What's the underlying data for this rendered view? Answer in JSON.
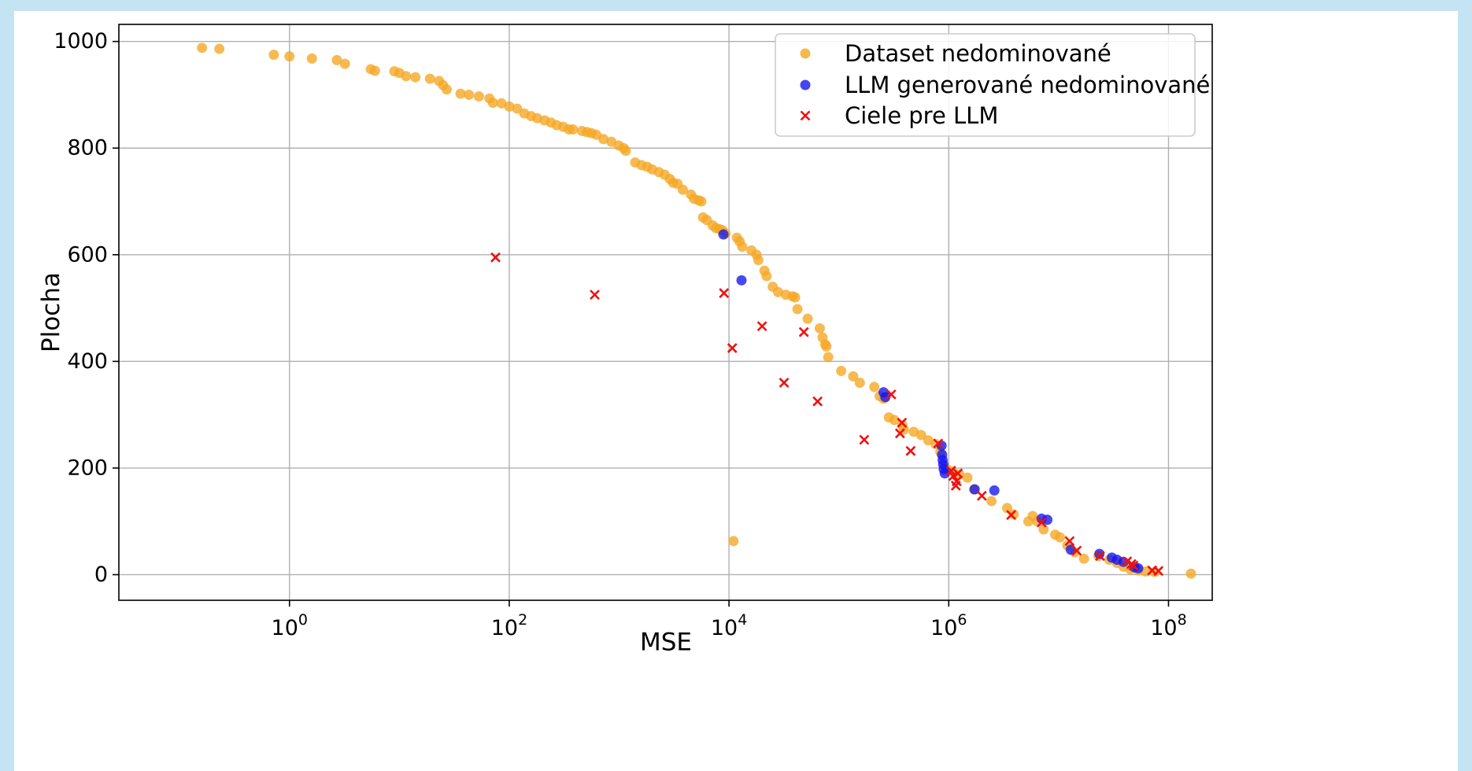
{
  "colors": {
    "dataset": "#f5a623",
    "llm": "#1515f0",
    "target": "#ee1111",
    "grid": "#b0b0b0",
    "page_background": "#c5e4f3"
  },
  "chart_data": {
    "type": "scatter",
    "xlabel": "MSE",
    "ylabel": "Plocha",
    "x_scale": "log",
    "xlim": [
      0.028,
      250000000
    ],
    "ylim": [
      -48,
      1032
    ],
    "x_ticks": [
      {
        "value": 1,
        "base": "10",
        "exp": "0"
      },
      {
        "value": 100,
        "base": "10",
        "exp": "2"
      },
      {
        "value": 10000,
        "base": "10",
        "exp": "4"
      },
      {
        "value": 1000000,
        "base": "10",
        "exp": "6"
      },
      {
        "value": 100000000,
        "base": "10",
        "exp": "8"
      }
    ],
    "y_ticks": [
      0,
      200,
      400,
      600,
      800,
      1000
    ],
    "grid": true,
    "legend_position": "top-right",
    "series": [
      {
        "name": "Dataset nedominované",
        "marker": "circle",
        "points": [
          [
            0.16,
            988
          ],
          [
            0.23,
            986
          ],
          [
            0.72,
            975
          ],
          [
            1.0,
            972
          ],
          [
            1.6,
            968
          ],
          [
            2.7,
            965
          ],
          [
            3.2,
            958
          ],
          [
            5.5,
            948
          ],
          [
            6.0,
            945
          ],
          [
            9.0,
            944
          ],
          [
            10,
            941
          ],
          [
            11.5,
            935
          ],
          [
            14,
            933
          ],
          [
            19,
            930
          ],
          [
            23,
            926
          ],
          [
            25,
            918
          ],
          [
            27,
            910
          ],
          [
            36,
            902
          ],
          [
            43,
            900
          ],
          [
            53,
            897
          ],
          [
            66,
            893
          ],
          [
            71,
            885
          ],
          [
            85,
            884
          ],
          [
            100,
            878
          ],
          [
            118,
            874
          ],
          [
            137,
            865
          ],
          [
            158,
            860
          ],
          [
            180,
            856
          ],
          [
            210,
            852
          ],
          [
            240,
            848
          ],
          [
            270,
            843
          ],
          [
            310,
            840
          ],
          [
            350,
            835
          ],
          [
            380,
            835
          ],
          [
            460,
            832
          ],
          [
            510,
            830
          ],
          [
            560,
            828
          ],
          [
            620,
            825
          ],
          [
            720,
            817
          ],
          [
            850,
            812
          ],
          [
            990,
            805
          ],
          [
            1100,
            800
          ],
          [
            1150,
            795
          ],
          [
            1400,
            773
          ],
          [
            1600,
            768
          ],
          [
            1800,
            765
          ],
          [
            2000,
            760
          ],
          [
            2300,
            755
          ],
          [
            2600,
            750
          ],
          [
            2900,
            742
          ],
          [
            3100,
            735
          ],
          [
            3400,
            733
          ],
          [
            3800,
            722
          ],
          [
            4500,
            713
          ],
          [
            4800,
            705
          ],
          [
            5300,
            702
          ],
          [
            5600,
            700
          ],
          [
            5800,
            670
          ],
          [
            6300,
            665
          ],
          [
            7100,
            655
          ],
          [
            7600,
            650
          ],
          [
            8200,
            648
          ],
          [
            8700,
            646
          ],
          [
            9300,
            640
          ],
          [
            11800,
            632
          ],
          [
            12500,
            625
          ],
          [
            13200,
            615
          ],
          [
            16000,
            608
          ],
          [
            17800,
            600
          ],
          [
            18500,
            590
          ],
          [
            21000,
            570
          ],
          [
            22000,
            560
          ],
          [
            25000,
            540
          ],
          [
            28000,
            530
          ],
          [
            33000,
            525
          ],
          [
            38000,
            522
          ],
          [
            40000,
            520
          ],
          [
            42000,
            498
          ],
          [
            52000,
            480
          ],
          [
            67000,
            462
          ],
          [
            71000,
            445
          ],
          [
            75000,
            432
          ],
          [
            77000,
            428
          ],
          [
            80000,
            408
          ],
          [
            105000,
            382
          ],
          [
            135000,
            372
          ],
          [
            155000,
            360
          ],
          [
            210000,
            352
          ],
          [
            235000,
            335
          ],
          [
            255000,
            330
          ],
          [
            285000,
            295
          ],
          [
            320000,
            290
          ],
          [
            380000,
            280
          ],
          [
            390000,
            272
          ],
          [
            480000,
            268
          ],
          [
            560000,
            262
          ],
          [
            650000,
            252
          ],
          [
            760000,
            245
          ],
          [
            840000,
            230
          ],
          [
            960000,
            198
          ],
          [
            1080000,
            193
          ],
          [
            1250000,
            188
          ],
          [
            1480000,
            182
          ],
          [
            1700000,
            160
          ],
          [
            2450000,
            138
          ],
          [
            3400000,
            125
          ],
          [
            3900000,
            113
          ],
          [
            5300000,
            100
          ],
          [
            5800000,
            110
          ],
          [
            6400000,
            100
          ],
          [
            7300000,
            85
          ],
          [
            9300000,
            75
          ],
          [
            10300000,
            70
          ],
          [
            11000,
            63
          ],
          [
            12000000,
            55
          ],
          [
            14000000,
            42
          ],
          [
            17000000,
            30
          ],
          [
            23000000,
            35
          ],
          [
            29000000,
            28
          ],
          [
            34000000,
            22
          ],
          [
            39000000,
            15
          ],
          [
            45000000,
            10
          ],
          [
            53000000,
            8
          ],
          [
            62000000,
            6
          ],
          [
            75000000,
            5
          ],
          [
            160000000,
            2
          ]
        ]
      },
      {
        "name": "LLM generované nedominované",
        "marker": "circle",
        "points": [
          [
            8900,
            638
          ],
          [
            13000,
            552
          ],
          [
            255000,
            342
          ],
          [
            265000,
            333
          ],
          [
            860000,
            242
          ],
          [
            870000,
            225
          ],
          [
            880000,
            215
          ],
          [
            890000,
            207
          ],
          [
            900000,
            198
          ],
          [
            920000,
            190
          ],
          [
            1720000,
            160
          ],
          [
            2600000,
            158
          ],
          [
            7000000,
            105
          ],
          [
            7900000,
            103
          ],
          [
            12900000,
            47
          ],
          [
            23500000,
            39
          ],
          [
            30500000,
            32
          ],
          [
            34000000,
            28
          ],
          [
            39000000,
            24
          ],
          [
            49000000,
            14
          ],
          [
            53000000,
            12
          ]
        ]
      },
      {
        "name": "Ciele pre LLM",
        "marker": "x",
        "points": [
          [
            75,
            595
          ],
          [
            600,
            525
          ],
          [
            9000,
            528
          ],
          [
            10700,
            425
          ],
          [
            20000,
            466
          ],
          [
            31700,
            360
          ],
          [
            48000,
            455
          ],
          [
            64000,
            325
          ],
          [
            170000,
            253
          ],
          [
            300000,
            338
          ],
          [
            360000,
            265
          ],
          [
            375000,
            285
          ],
          [
            450000,
            232
          ],
          [
            800000,
            246
          ],
          [
            1050000,
            195
          ],
          [
            1100000,
            185
          ],
          [
            1160000,
            167
          ],
          [
            1180000,
            175
          ],
          [
            1210000,
            190
          ],
          [
            2000000,
            148
          ],
          [
            3700000,
            112
          ],
          [
            7000000,
            98
          ],
          [
            12600000,
            63
          ],
          [
            14600000,
            45
          ],
          [
            23800000,
            35
          ],
          [
            42000000,
            25
          ],
          [
            46000000,
            20
          ],
          [
            48000000,
            17
          ],
          [
            71000000,
            8
          ],
          [
            81000000,
            7
          ]
        ]
      }
    ]
  }
}
